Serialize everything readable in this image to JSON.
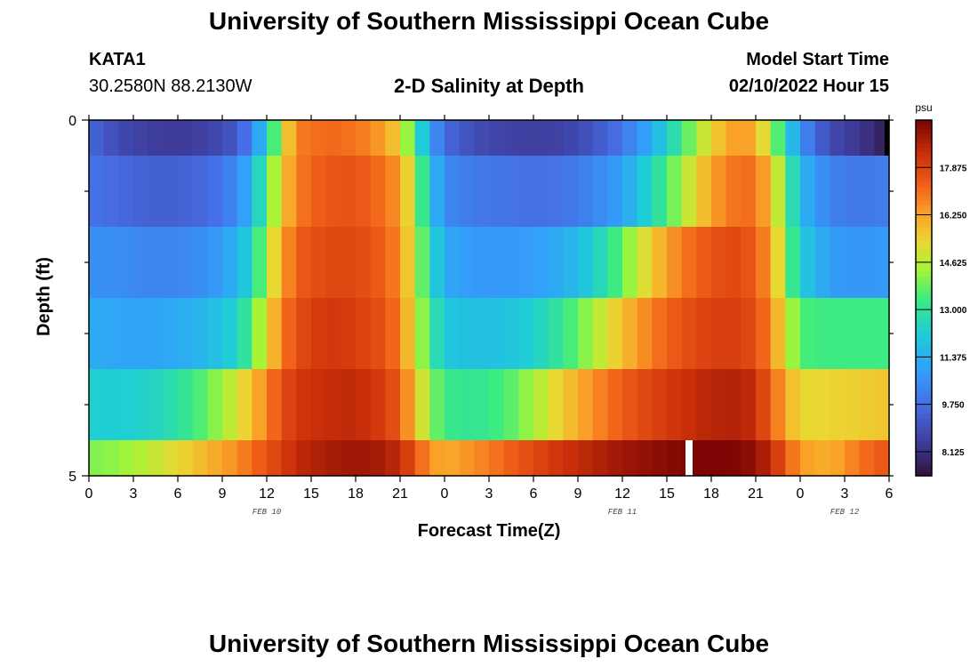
{
  "header": {
    "main_title": "University of Southern Mississippi Ocean Cube",
    "station_id": "KATA1",
    "coordinates": "30.2580N  88.2130W",
    "model_label": "Model Start Time",
    "model_time": "02/10/2022 Hour 15",
    "bottom_title": "University of Southern Mississippi Ocean Cube"
  },
  "chart_data": {
    "type": "heatmap",
    "title": "2-D Salinity at Depth",
    "xlabel": "Forecast Time(Z)",
    "ylabel": "Depth (ft)",
    "x_tick_labels": [
      "0",
      "3",
      "6",
      "9",
      "12",
      "15",
      "18",
      "21",
      "0",
      "3",
      "6",
      "9",
      "12",
      "15",
      "18",
      "21",
      "0",
      "3",
      "6"
    ],
    "x_range_hours": [
      0,
      54
    ],
    "day_labels": [
      {
        "label": "FEB 10",
        "hour": 12
      },
      {
        "label": "FEB 11",
        "hour": 36
      },
      {
        "label": "FEB 12",
        "hour": 51
      }
    ],
    "y_tick_labels": [
      "0",
      "5"
    ],
    "ylim": [
      0,
      5
    ],
    "depth_layers": [
      0.25,
      1.0,
      2.0,
      3.0,
      4.0,
      4.75
    ],
    "colorbar": {
      "unit": "psu",
      "min": 7.3,
      "max": 19.5,
      "tick_labels": [
        "17.875",
        "16.250",
        "14.625",
        "13.000",
        "11.375",
        "9.750",
        "8.125"
      ],
      "tick_values": [
        17.875,
        16.25,
        14.625,
        13.0,
        11.375,
        9.75,
        8.125
      ]
    },
    "anchor_hours": [
      0,
      2,
      4,
      6,
      8,
      10,
      11,
      12,
      13,
      14,
      16,
      18,
      20,
      21,
      22,
      23,
      24,
      26,
      28,
      30,
      32,
      34,
      36,
      38,
      40,
      42,
      44,
      45,
      46,
      47,
      48,
      50,
      52,
      54
    ],
    "series": [
      {
        "name": "0.25 ft",
        "values": [
          9.6,
          8.8,
          8.5,
          8.4,
          8.6,
          9.2,
          10.3,
          12.2,
          14.8,
          16.8,
          17.2,
          17.0,
          16.3,
          15.3,
          13.2,
          11.0,
          9.6,
          8.9,
          8.6,
          8.5,
          8.6,
          9.1,
          9.9,
          11.3,
          13.3,
          15.4,
          16.6,
          15.9,
          14.6,
          12.6,
          10.6,
          8.8,
          8.3,
          7.6
        ]
      },
      {
        "name": "1.0 ft",
        "values": [
          9.9,
          9.6,
          9.4,
          9.4,
          9.6,
          10.4,
          11.6,
          13.5,
          15.4,
          16.9,
          17.5,
          17.6,
          17.0,
          16.4,
          14.5,
          12.0,
          10.4,
          10.0,
          9.9,
          9.8,
          9.9,
          10.3,
          11.0,
          12.6,
          14.4,
          16.3,
          17.2,
          17.0,
          15.8,
          13.8,
          11.6,
          10.2,
          10.0,
          10.1
        ]
      },
      {
        "name": "2.0 ft",
        "values": [
          10.6,
          10.5,
          10.3,
          10.3,
          10.6,
          11.4,
          12.6,
          14.4,
          16.2,
          17.4,
          17.8,
          17.8,
          17.3,
          16.6,
          14.7,
          12.8,
          11.2,
          10.8,
          10.8,
          10.9,
          11.3,
          12.2,
          13.8,
          15.6,
          16.9,
          17.6,
          17.8,
          17.3,
          16.4,
          14.2,
          12.2,
          10.9,
          10.7,
          10.9
        ]
      },
      {
        "name": "3.0 ft",
        "values": [
          11.3,
          11.1,
          11.1,
          11.2,
          11.6,
          12.4,
          13.6,
          15.2,
          16.8,
          17.7,
          18.2,
          18.0,
          17.6,
          16.8,
          15.0,
          13.3,
          12.0,
          11.8,
          11.9,
          12.3,
          13.2,
          14.4,
          15.8,
          16.9,
          17.6,
          18.0,
          18.0,
          17.6,
          16.8,
          15.0,
          13.5,
          13.4,
          13.4,
          13.4
        ]
      },
      {
        "name": "4.0 ft",
        "values": [
          12.3,
          12.2,
          12.4,
          12.9,
          13.8,
          15.0,
          15.8,
          16.8,
          17.6,
          18.2,
          18.4,
          18.5,
          18.0,
          17.4,
          15.7,
          14.2,
          13.3,
          13.1,
          13.5,
          14.4,
          15.6,
          16.6,
          17.4,
          17.9,
          18.3,
          18.6,
          18.7,
          18.3,
          17.4,
          16.2,
          15.3,
          15.4,
          15.5,
          15.7
        ]
      },
      {
        "name": "4.75 ft",
        "values": [
          14.0,
          14.2,
          14.7,
          15.3,
          16.0,
          16.6,
          17.1,
          17.6,
          18.0,
          18.5,
          18.8,
          19.0,
          18.8,
          18.4,
          17.6,
          16.5,
          16.1,
          16.6,
          17.2,
          17.8,
          18.3,
          18.6,
          19.0,
          19.2,
          19.4,
          19.5,
          19.4,
          19.1,
          18.5,
          17.5,
          16.4,
          16.0,
          17.0,
          17.6
        ]
      }
    ],
    "marker": {
      "hour": 40.5,
      "depth_layer": "4.75 ft"
    }
  }
}
